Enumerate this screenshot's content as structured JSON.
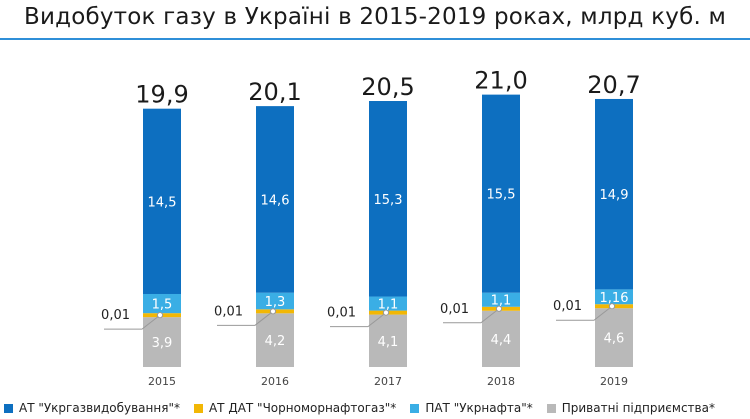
{
  "chart_data": {
    "type": "bar",
    "stacked": true,
    "title": "Видобуток газу в Україні в 2015-2019 роках, млрд куб. м",
    "categories": [
      "2015",
      "2016",
      "2017",
      "2018",
      "2019"
    ],
    "totals": [
      "19,9",
      "20,1",
      "20,5",
      "21,0",
      "20,7"
    ],
    "series": [
      {
        "name": "Приватні підприємства*",
        "color": "#b9b9b9",
        "values": [
          3.9,
          4.2,
          4.1,
          4.4,
          4.6
        ],
        "labels": [
          "3,9",
          "4,2",
          "4,1",
          "4,4",
          "4,6"
        ],
        "label_color": "#ffffff"
      },
      {
        "name": "АТ ДАТ \"Чорноморнафтогаз\"*",
        "color": "#f2b705",
        "values": [
          0.01,
          0.01,
          0.01,
          0.01,
          0.01
        ],
        "labels": [
          "0,01",
          "0,01",
          "0,01",
          "0,01",
          "0,01"
        ],
        "label_color": "#222222"
      },
      {
        "name": "ПАТ \"Укрнафта\"*",
        "color": "#3aaee5",
        "values": [
          1.5,
          1.3,
          1.1,
          1.1,
          1.16
        ],
        "labels": [
          "1,5",
          "1,3",
          "1,1",
          "1,1",
          "1,16"
        ],
        "label_color": "#ffffff"
      },
      {
        "name": "АТ \"Укргазвидобування\"*",
        "color": "#0d6fc0",
        "values": [
          14.5,
          14.6,
          15.3,
          15.5,
          14.9
        ],
        "labels": [
          "14,5",
          "14,6",
          "15,3",
          "15,5",
          "14,9"
        ],
        "label_color": "#ffffff"
      }
    ],
    "legend_order": [
      {
        "name": "АТ \"Укргазвидобування\"*",
        "color": "#0d6fc0"
      },
      {
        "name": "АТ ДАТ \"Чорноморнафтогаз\"*",
        "color": "#f2b705"
      },
      {
        "name": "ПАТ \"Укрнафта\"*",
        "color": "#3aaee5"
      },
      {
        "name": "Приватні підприємства*",
        "color": "#b9b9b9"
      }
    ],
    "legend_position": "bottom",
    "grid": false
  }
}
